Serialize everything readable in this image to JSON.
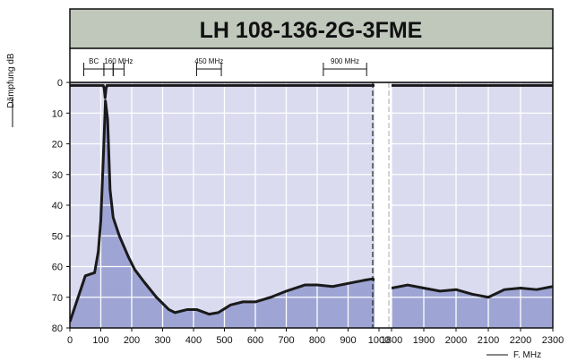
{
  "chart_data": {
    "type": "area",
    "title": "LH 108-136-2G-3FME",
    "ylabel": "Dämpfung dB",
    "xlabel": "F. MHz",
    "y_axis": {
      "range": [
        0,
        80
      ],
      "reversed": true,
      "ticks": [
        0,
        10,
        20,
        30,
        40,
        50,
        60,
        70,
        80
      ]
    },
    "x_axis_segments": [
      {
        "range": [
          0,
          1000
        ],
        "ticks": [
          0,
          100,
          200,
          300,
          400,
          500,
          600,
          700,
          800,
          900,
          1000
        ]
      },
      {
        "range": [
          1800,
          2300
        ],
        "ticks": [
          1800,
          1900,
          2000,
          2100,
          2200,
          2300
        ]
      }
    ],
    "x_tick_labels": [
      "0",
      "100",
      "200",
      "300",
      "400",
      "500",
      "600",
      "700",
      "800",
      "900",
      "1000",
      "1800",
      "1900",
      "2000",
      "2100",
      "2200",
      "2300"
    ],
    "bands": [
      {
        "label": "BC",
        "from": 45,
        "to": 110
      },
      {
        "label": "",
        "from": 110,
        "to": 140
      },
      {
        "label": "160 MHz",
        "from": 140,
        "to": 175
      },
      {
        "label": "450 MHz",
        "from": 410,
        "to": 490
      },
      {
        "label": "900 MHz",
        "from": 820,
        "to": 960
      }
    ],
    "series": [
      {
        "segment": 0,
        "points": [
          [
            0,
            78
          ],
          [
            20,
            72
          ],
          [
            50,
            63
          ],
          [
            80,
            62
          ],
          [
            92,
            55
          ],
          [
            100,
            45
          ],
          [
            108,
            25
          ],
          [
            115,
            6
          ],
          [
            122,
            12
          ],
          [
            130,
            35
          ],
          [
            140,
            44
          ],
          [
            160,
            50
          ],
          [
            190,
            57
          ],
          [
            210,
            61
          ],
          [
            240,
            65
          ],
          [
            280,
            70
          ],
          [
            320,
            74
          ],
          [
            340,
            75
          ],
          [
            380,
            74
          ],
          [
            410,
            74
          ],
          [
            450,
            75.5
          ],
          [
            480,
            75
          ],
          [
            520,
            72.5
          ],
          [
            560,
            71.5
          ],
          [
            600,
            71.5
          ],
          [
            650,
            70
          ],
          [
            700,
            68
          ],
          [
            760,
            66
          ],
          [
            800,
            66
          ],
          [
            850,
            66.5
          ],
          [
            900,
            65.5
          ],
          [
            950,
            64.5
          ],
          [
            980,
            64
          ],
          [
            1000,
            65
          ],
          [
            1020,
            66
          ]
        ]
      },
      {
        "segment": 0,
        "points": [
          [
            0,
            1
          ],
          [
            100,
            1
          ],
          [
            108,
            1
          ],
          [
            111,
            2
          ],
          [
            114,
            5
          ],
          [
            117,
            2
          ],
          [
            120,
            1
          ],
          [
            1000,
            1
          ],
          [
            1020,
            1
          ]
        ]
      },
      {
        "segment": 1,
        "points": [
          [
            1800,
            67
          ],
          [
            1850,
            66
          ],
          [
            1900,
            67
          ],
          [
            1950,
            68
          ],
          [
            2000,
            67.5
          ],
          [
            2050,
            69
          ],
          [
            2100,
            70
          ],
          [
            2150,
            67.5
          ],
          [
            2200,
            67
          ],
          [
            2250,
            67.5
          ],
          [
            2300,
            66.5
          ]
        ]
      },
      {
        "segment": 1,
        "points": [
          [
            1800,
            1
          ],
          [
            2300,
            1
          ]
        ]
      }
    ]
  },
  "colors": {
    "title_bg": "#bfc8bb",
    "plot_bg": "#dadbef",
    "fill": "#9ea5d4",
    "curve": "#1a1a1a",
    "grid": "#ffffff"
  }
}
